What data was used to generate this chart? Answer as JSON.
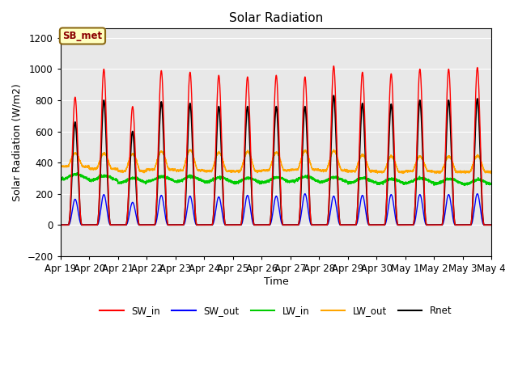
{
  "title": "Solar Radiation",
  "ylabel": "Solar Radiation (W/m2)",
  "xlabel": "Time",
  "ylim": [
    -200,
    1260
  ],
  "num_days": 15,
  "tick_labels": [
    "Apr 19",
    "Apr 20",
    "Apr 21",
    "Apr 22",
    "Apr 23",
    "Apr 24",
    "Apr 25",
    "Apr 26",
    "Apr 27",
    "Apr 28",
    "Apr 29",
    "Apr 30",
    "May 1",
    "May 2",
    "May 3",
    "May 4"
  ],
  "axes_bg": "#e8e8e8",
  "grid_color": "#ffffff",
  "annotation_text": "SB_met",
  "annotation_fg": "#8b0000",
  "annotation_bg": "#ffffc0",
  "sw_in_color": "#ff0000",
  "sw_out_color": "#0000ff",
  "lw_in_color": "#00cc00",
  "lw_out_color": "#ffa500",
  "rnet_color": "#000000",
  "sw_in_peaks": [
    820,
    1000,
    760,
    990,
    980,
    960,
    950,
    960,
    950,
    1020,
    980,
    970,
    1000,
    1000,
    1010
  ],
  "sw_out_peaks": [
    165,
    195,
    145,
    190,
    185,
    180,
    190,
    185,
    200,
    185,
    190,
    195,
    195,
    195,
    200
  ],
  "lw_in_values": [
    310,
    300,
    285,
    295,
    295,
    290,
    285,
    290,
    295,
    290,
    285,
    280,
    285,
    280,
    275
  ],
  "lw_out_values": [
    375,
    360,
    345,
    355,
    350,
    345,
    345,
    350,
    355,
    350,
    345,
    340,
    345,
    340,
    340
  ],
  "lw_out_peaks": [
    460,
    460,
    455,
    470,
    480,
    465,
    470,
    465,
    475,
    475,
    450,
    440,
    440,
    440,
    445
  ],
  "rnet_peaks": [
    660,
    800,
    600,
    790,
    780,
    760,
    760,
    760,
    760,
    830,
    780,
    775,
    800,
    800,
    810
  ]
}
